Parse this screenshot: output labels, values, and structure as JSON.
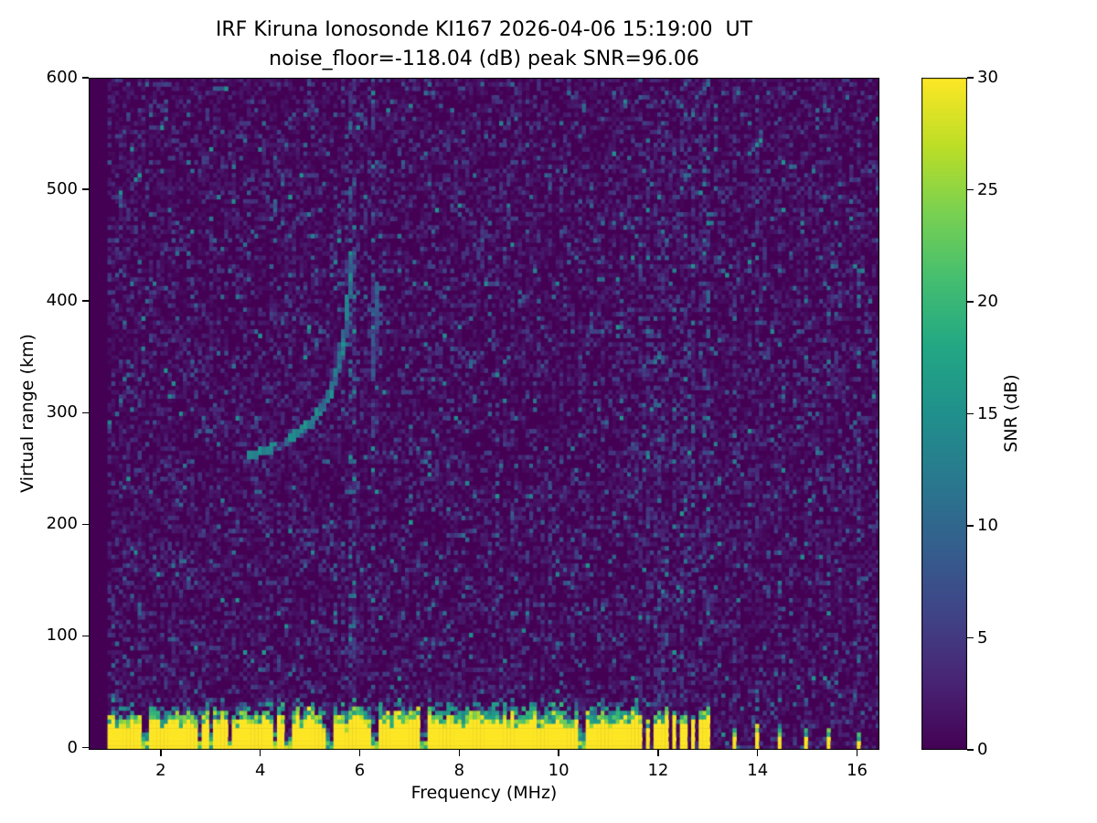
{
  "chart_data": {
    "type": "heatmap",
    "title": "IRF Kiruna Ionosonde KI167 2026-04-06 15:19:00  UT",
    "subtitle": "noise_floor=-118.04 (dB) peak SNR=96.06",
    "station": "IRF Kiruna Ionosonde KI167",
    "timestamp_ut": "2026-04-06 15:19:00",
    "noise_floor_db": -118.04,
    "peak_snr_db": 96.06,
    "xlabel": "Frequency (MHz)",
    "ylabel": "Virtual range (km)",
    "x_range_mhz": [
      0.55,
      16.45
    ],
    "y_range_km": [
      -2,
      600
    ],
    "x_ticks": [
      2,
      4,
      6,
      8,
      10,
      12,
      14,
      16
    ],
    "y_ticks": [
      0,
      100,
      200,
      300,
      400,
      500,
      600
    ],
    "colorbar": {
      "label": "SNR (dB)",
      "min": 0,
      "max": 30,
      "ticks": [
        0,
        5,
        10,
        15,
        20,
        25,
        30
      ],
      "colormap": "viridis"
    },
    "features": {
      "data_start_mhz": 0.95,
      "background_snr_db": [
        0,
        5
      ],
      "ground_band": {
        "freq_start_mhz": 0.95,
        "freq_end_mhz": 11.62,
        "top_km_min": 22,
        "top_km_max": 40,
        "snr_db": 30,
        "notch_freqs_mhz": [
          1.7,
          2.78,
          3.0,
          3.38,
          4.3,
          4.55,
          5.38,
          6.3,
          7.3,
          10.45
        ]
      },
      "interference_stripes_cluster_mhz": [
        11.67,
        11.8,
        11.93,
        12.06,
        12.19,
        12.32,
        12.45,
        12.58,
        12.71,
        12.84,
        12.97
      ],
      "interference_stripes_isolated_mhz": [
        13.5,
        14.0,
        14.45,
        14.95,
        15.45,
        16.05
      ],
      "noise_column_mhz": [
        5.85,
        6.28
      ],
      "echo_trace": {
        "snr_db_range": [
          8,
          16
        ],
        "points": [
          [
            3.75,
            263
          ],
          [
            4.0,
            266
          ],
          [
            4.25,
            270
          ],
          [
            4.5,
            276
          ],
          [
            4.75,
            284
          ],
          [
            5.0,
            293
          ],
          [
            5.2,
            304
          ],
          [
            5.38,
            318
          ],
          [
            5.52,
            334
          ],
          [
            5.62,
            352
          ],
          [
            5.7,
            374
          ],
          [
            5.76,
            398
          ],
          [
            5.8,
            420
          ],
          [
            5.83,
            438
          ]
        ]
      },
      "echo_trace_secondary": {
        "snr_db_range": [
          5,
          10
        ],
        "points": [
          [
            6.26,
            332
          ],
          [
            6.29,
            358
          ],
          [
            6.32,
            388
          ],
          [
            6.35,
            416
          ]
        ]
      }
    }
  }
}
